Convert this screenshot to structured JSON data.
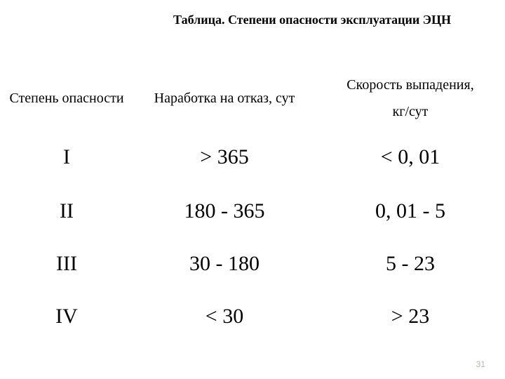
{
  "title": "Таблица. Степени опасности эксплуатации ЭЦН",
  "table": {
    "headers": {
      "col1": "Степень опасности",
      "col2": "Наработка на отказ, сут",
      "col3_line1": "Скорость выпадения,",
      "col3_line2": "кг/сут"
    },
    "rows": [
      {
        "c1": "I",
        "c2": "> 365",
        "c3": "< 0, 01"
      },
      {
        "c1": "II",
        "c2": "180 - 365",
        "c3": "0, 01 - 5"
      },
      {
        "c1": "III",
        "c2": "30 - 180",
        "c3": "5 - 23"
      },
      {
        "c1": "IV",
        "c2": "< 30",
        "c3": "> 23"
      }
    ]
  },
  "page_number": "31"
}
